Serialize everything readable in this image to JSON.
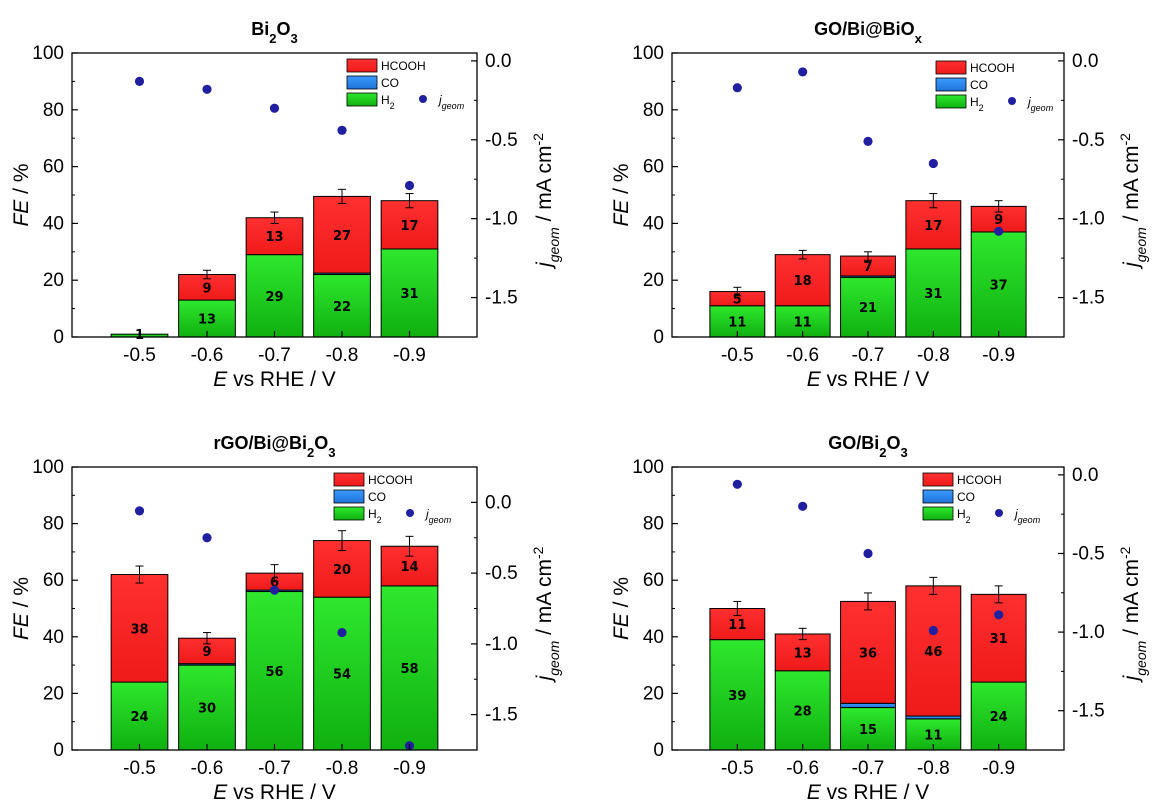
{
  "colors": {
    "hcooh": "#ff2a2a",
    "co": "#2b8cf0",
    "h2": "#1ed41e",
    "jgeom": "#1f1fa0"
  },
  "legend": {
    "hcooh": "HCOOH",
    "co": "CO",
    "h2_main": "H",
    "h2_sub": "2",
    "j_main": "j",
    "j_sub": "geom"
  },
  "axis_text": {
    "x_italic": "E",
    "x_rest": " vs RHE / V",
    "y_italic": "FE",
    "y_rest": " / %",
    "y2_main": "j",
    "y2_sub": "geom",
    "y2_rest": " / mA cm",
    "y2_sup": "-2"
  },
  "chart_data": [
    {
      "type": "bar",
      "title_parts": [
        {
          "t": "Bi"
        },
        {
          "t": "2",
          "sub": true
        },
        {
          "t": "O"
        },
        {
          "t": "3",
          "sub": true
        }
      ],
      "categories": [
        "-0.5",
        "-0.6",
        "-0.7",
        "-0.8",
        "-0.9"
      ],
      "ylim": [
        0,
        100
      ],
      "yticks": [
        "0",
        "20",
        "40",
        "60",
        "80",
        "100"
      ],
      "y2lim": [
        -1.75,
        0.05
      ],
      "y2ticks": [
        "0.0",
        "-0.5",
        "-1.0",
        "-1.5"
      ],
      "series": [
        {
          "name": "H2",
          "values": [
            1,
            13,
            29,
            22,
            31
          ],
          "labels": [
            "1",
            "13",
            "29",
            "22",
            "31"
          ]
        },
        {
          "name": "CO",
          "values": [
            0,
            0,
            0,
            0.5,
            0
          ],
          "labels": [
            "",
            "",
            "",
            "",
            ""
          ]
        },
        {
          "name": "HCOOH",
          "values": [
            0,
            9,
            13,
            27,
            17
          ],
          "labels": [
            "",
            "9",
            "13",
            "27",
            "17"
          ]
        }
      ],
      "errors": [
        0,
        1.5,
        2,
        2.5,
        2.5
      ],
      "j_geom": [
        -0.13,
        -0.18,
        -0.3,
        -0.44,
        -0.79
      ]
    },
    {
      "type": "bar",
      "title_parts": [
        {
          "t": "GO/Bi@BiO"
        },
        {
          "t": "x",
          "sub": true
        }
      ],
      "categories": [
        "-0.5",
        "-0.6",
        "-0.7",
        "-0.8",
        "-0.9"
      ],
      "ylim": [
        0,
        100
      ],
      "yticks": [
        "0",
        "20",
        "40",
        "60",
        "80",
        "100"
      ],
      "y2lim": [
        -1.75,
        0.05
      ],
      "y2ticks": [
        "0.0",
        "-0.5",
        "-1.0",
        "-1.5"
      ],
      "series": [
        {
          "name": "H2",
          "values": [
            11,
            11,
            21,
            31,
            37
          ],
          "labels": [
            "11",
            "11",
            "21",
            "31",
            "37"
          ]
        },
        {
          "name": "CO",
          "values": [
            0,
            0,
            0.5,
            0,
            0
          ],
          "labels": [
            "",
            "",
            "",
            "",
            ""
          ]
        },
        {
          "name": "HCOOH",
          "values": [
            5,
            18,
            7,
            17,
            9
          ],
          "labels": [
            "5",
            "18",
            "7",
            "17",
            "9"
          ]
        }
      ],
      "errors": [
        1.5,
        1.5,
        1.5,
        2.5,
        2
      ],
      "j_geom": [
        -0.17,
        -0.07,
        -0.51,
        -0.65,
        -1.08
      ]
    },
    {
      "type": "bar",
      "title_parts": [
        {
          "t": "rGO/Bi@Bi"
        },
        {
          "t": "2",
          "sub": true
        },
        {
          "t": "O"
        },
        {
          "t": "3",
          "sub": true
        }
      ],
      "categories": [
        "-0.5",
        "-0.6",
        "-0.7",
        "-0.8",
        "-0.9"
      ],
      "ylim": [
        0,
        100
      ],
      "yticks": [
        "0",
        "20",
        "40",
        "60",
        "80",
        "100"
      ],
      "y2lim": [
        -1.75,
        0.25
      ],
      "y2ticks": [
        "0.0",
        "-0.5",
        "-1.0",
        "-1.5"
      ],
      "series": [
        {
          "name": "H2",
          "values": [
            24,
            30,
            56,
            54,
            58
          ],
          "labels": [
            "24",
            "30",
            "56",
            "54",
            "58"
          ]
        },
        {
          "name": "CO",
          "values": [
            0,
            0.5,
            0.5,
            0,
            0
          ],
          "labels": [
            "",
            "",
            "",
            "",
            ""
          ]
        },
        {
          "name": "HCOOH",
          "values": [
            38,
            9,
            6,
            20,
            14
          ],
          "labels": [
            "38",
            "9",
            "6",
            "20",
            "14"
          ]
        }
      ],
      "errors": [
        3,
        2,
        3,
        3.5,
        3.5
      ],
      "j_geom": [
        -0.06,
        -0.25,
        -0.62,
        -0.92,
        -1.72
      ]
    },
    {
      "type": "bar",
      "title_parts": [
        {
          "t": "GO/Bi"
        },
        {
          "t": "2",
          "sub": true
        },
        {
          "t": "O"
        },
        {
          "t": "3",
          "sub": true
        }
      ],
      "categories": [
        "-0.5",
        "-0.6",
        "-0.7",
        "-0.8",
        "-0.9"
      ],
      "ylim": [
        0,
        100
      ],
      "yticks": [
        "0",
        "20",
        "40",
        "60",
        "80",
        "100"
      ],
      "y2lim": [
        -1.75,
        0.05
      ],
      "y2ticks": [
        "0.0",
        "-0.5",
        "-1.0",
        "-1.5"
      ],
      "series": [
        {
          "name": "H2",
          "values": [
            39,
            28,
            15,
            11,
            24
          ],
          "labels": [
            "39",
            "28",
            "15",
            "11",
            "24"
          ]
        },
        {
          "name": "CO",
          "values": [
            0,
            0,
            1.5,
            1,
            0
          ],
          "labels": [
            "",
            "",
            "",
            "",
            ""
          ]
        },
        {
          "name": "HCOOH",
          "values": [
            11,
            13,
            36,
            46,
            31
          ],
          "labels": [
            "11",
            "13",
            "36",
            "46",
            "31"
          ]
        }
      ],
      "errors": [
        2.5,
        2,
        3,
        3,
        3
      ],
      "j_geom": [
        -0.06,
        -0.2,
        -0.5,
        -0.99,
        -0.89
      ]
    }
  ]
}
